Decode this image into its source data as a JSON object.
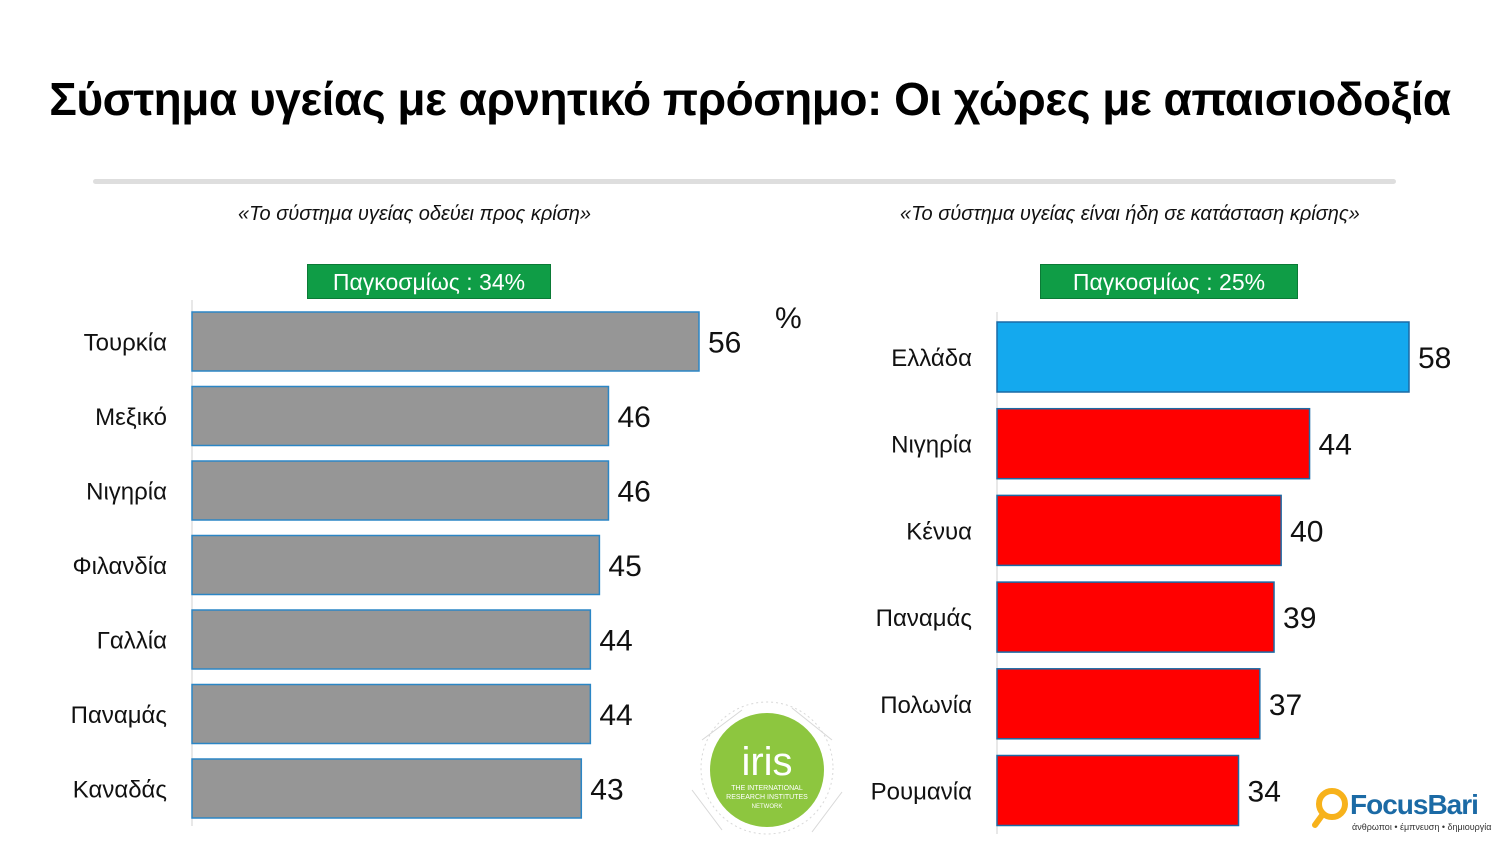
{
  "title": "Σύστημα υγείας με αρνητικό πρόσημο: Οι χώρες με απαισιοδοξία",
  "percent_sign": "%",
  "chart_data": [
    {
      "type": "bar",
      "orientation": "horizontal",
      "title": "«Το σύστημα υγείας οδεύει προς κρίση»",
      "global_label": "Παγκοσμίως : 34%",
      "unit": "%",
      "categories": [
        "Τουρκία",
        "Μεξικό",
        "Νιγηρία",
        "Φιλανδία",
        "Γαλλία",
        "Παναμάς",
        "Καναδάς"
      ],
      "values": [
        56,
        46,
        46,
        45,
        44,
        44,
        43
      ],
      "colors": [
        "#969696",
        "#969696",
        "#969696",
        "#969696",
        "#969696",
        "#969696",
        "#969696"
      ],
      "xlim": [
        0,
        56
      ],
      "grid": false
    },
    {
      "type": "bar",
      "orientation": "horizontal",
      "title": "«Το σύστημα υγείας είναι ήδη σε κατάσταση κρίσης»",
      "global_label": "Παγκοσμίως : 25%",
      "unit": "%",
      "categories": [
        "Ελλάδα",
        "Νιγηρία",
        "Κένυα",
        "Παναμάς",
        "Πολωνία",
        "Ρουμανία"
      ],
      "values": [
        58,
        44,
        40,
        39,
        37,
        34
      ],
      "colors": [
        "#14a9ee",
        "#ff0000",
        "#ff0000",
        "#ff0000",
        "#ff0000",
        "#ff0000"
      ],
      "xlim": [
        0,
        58
      ],
      "grid": false
    }
  ],
  "logos": {
    "iris": {
      "name": "iris",
      "line1": "THE INTERNATIONAL",
      "line2": "RESEARCH INSTITUTES",
      "line3": "NETWORK",
      "color": "#8dc63f"
    },
    "focusbari": {
      "name": "FocusBari",
      "tagline": "άνθρωποι • έμπνευση • δημιουργία",
      "color": "#1b6aa5",
      "accent": "#f7b21b"
    }
  }
}
